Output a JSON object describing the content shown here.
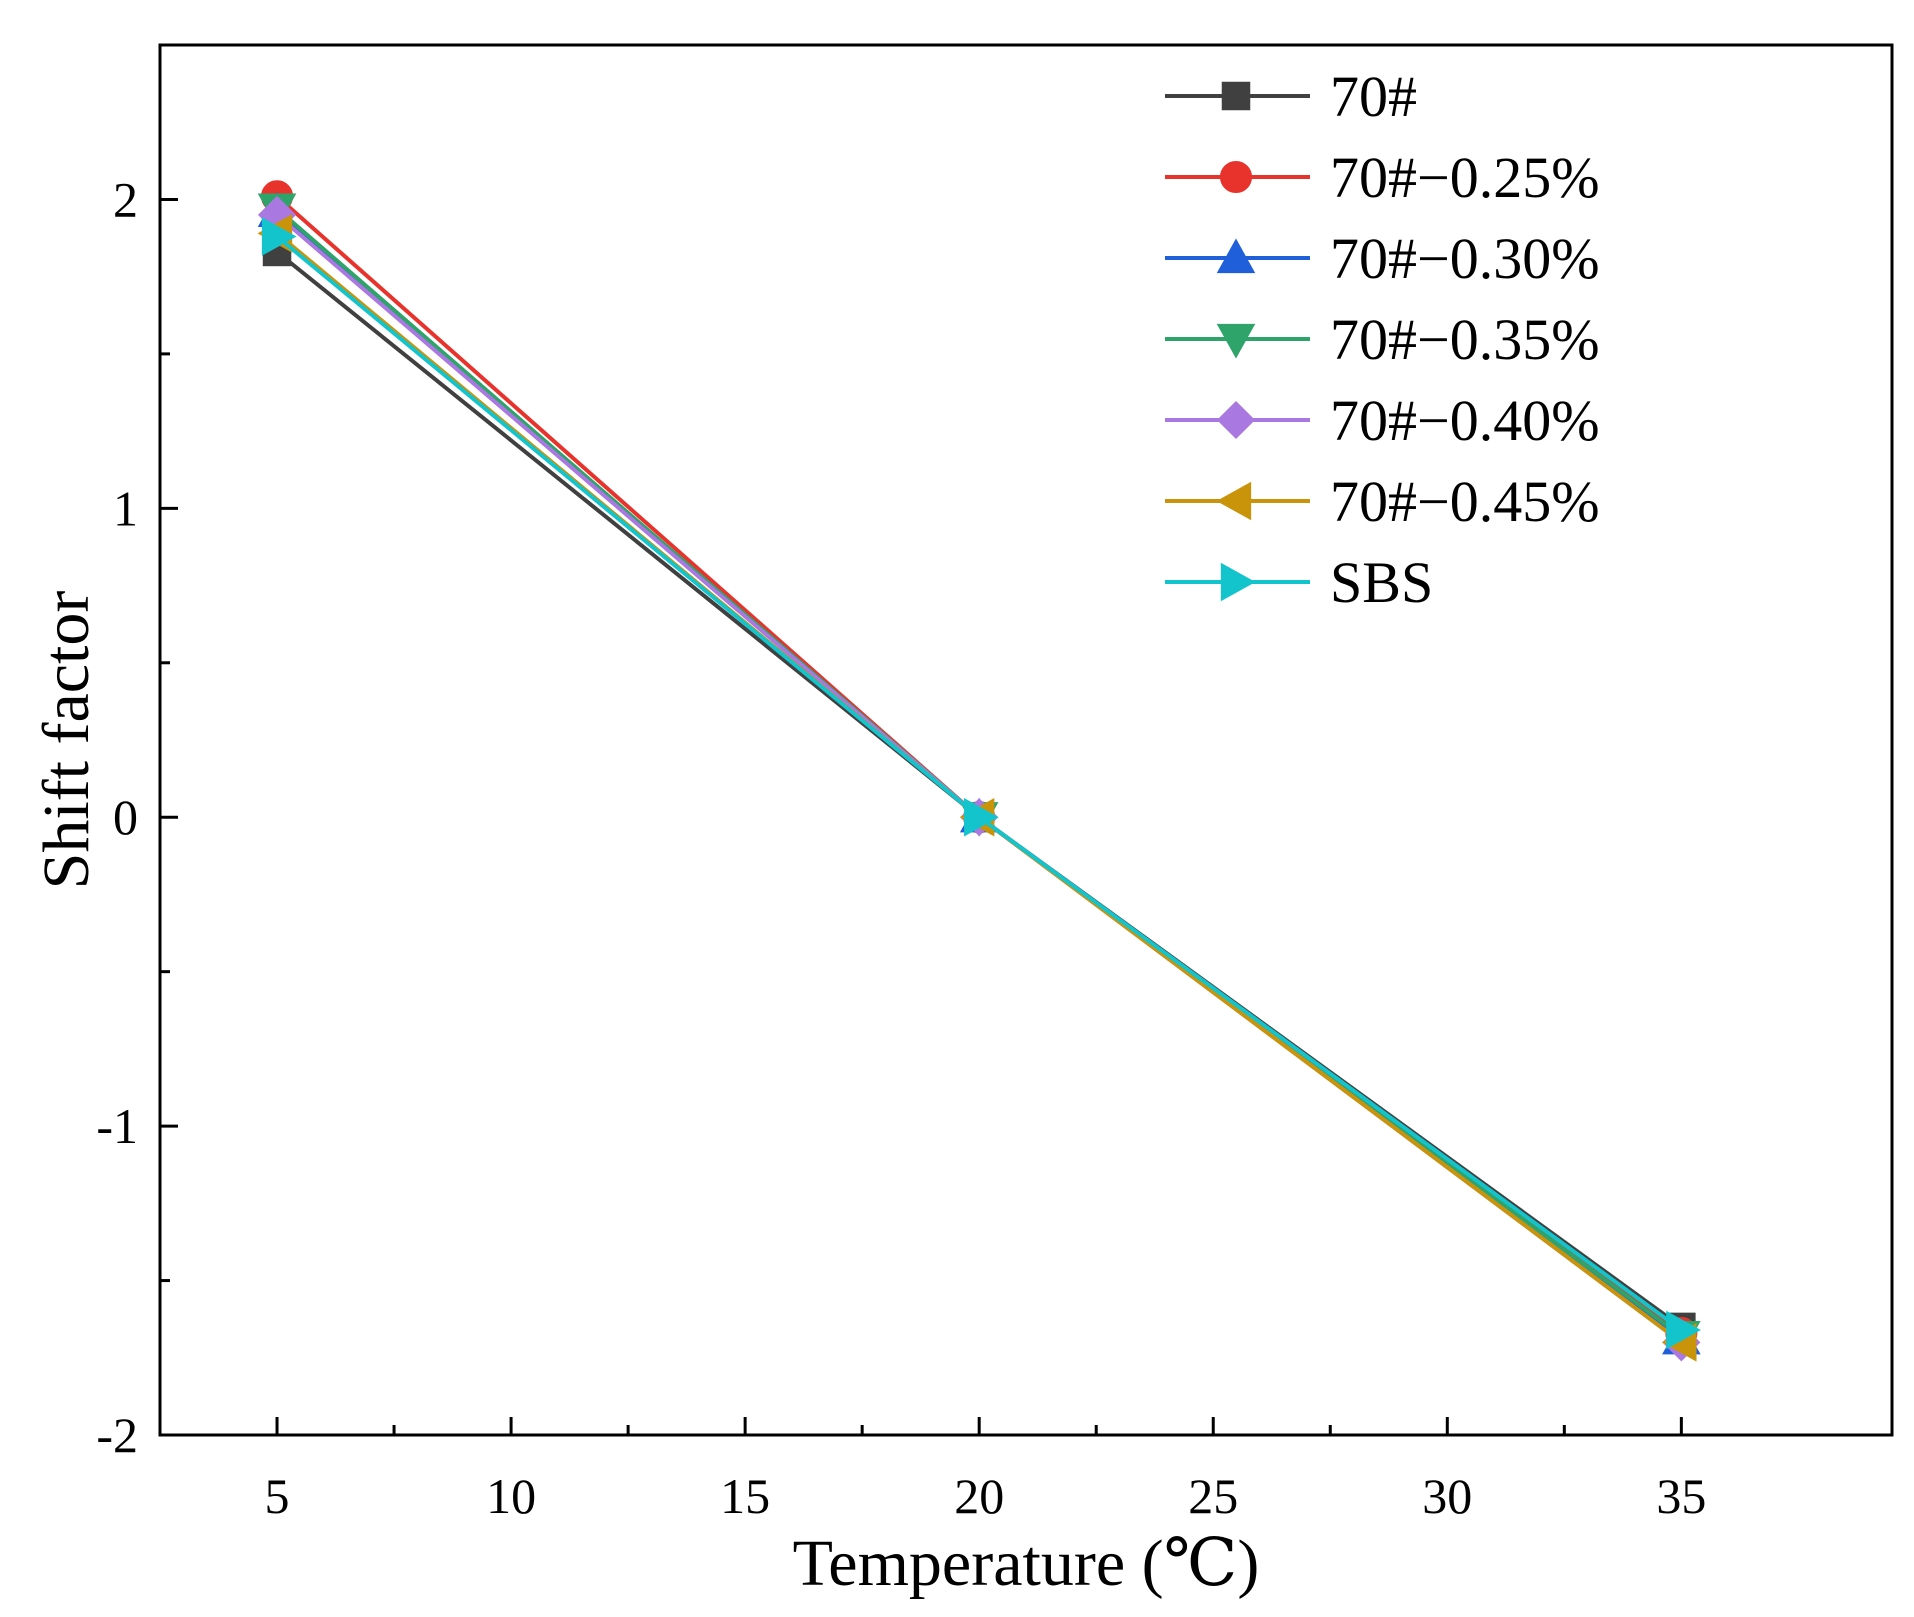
{
  "chart_data": {
    "type": "line",
    "title": "",
    "xlabel": "Temperature (℃)",
    "ylabel": "Shift factor",
    "x": [
      5,
      20,
      35
    ],
    "xlim": [
      2.5,
      39.5
    ],
    "ylim": [
      -2,
      2.5
    ],
    "xticks": [
      5,
      10,
      15,
      20,
      25,
      30,
      35
    ],
    "yticks": [
      -2,
      -1,
      0,
      1,
      2
    ],
    "xtick_labels": [
      "5",
      "10",
      "15",
      "20",
      "25",
      "30",
      "35"
    ],
    "ytick_labels": [
      "-2",
      "-1",
      "0",
      "1",
      "2"
    ],
    "legend_position": "top-right",
    "grid": false,
    "series": [
      {
        "name": "70#",
        "values": [
          1.83,
          0,
          -1.65
        ],
        "color": "#404040",
        "marker": "square"
      },
      {
        "name": "70#−0.25%",
        "values": [
          2.01,
          0,
          -1.67
        ],
        "color": "#e8332c",
        "marker": "circle"
      },
      {
        "name": "70#−0.30%",
        "values": [
          1.96,
          0,
          -1.69
        ],
        "color": "#1f5fd9",
        "marker": "triangle-up"
      },
      {
        "name": "70#−0.35%",
        "values": [
          1.97,
          0,
          -1.68
        ],
        "color": "#2ea36a",
        "marker": "triangle-down"
      },
      {
        "name": "70#−0.40%",
        "values": [
          1.95,
          0,
          -1.7
        ],
        "color": "#a978e0",
        "marker": "diamond"
      },
      {
        "name": "70#−0.45%",
        "values": [
          1.89,
          0,
          -1.7
        ],
        "color": "#c9930a",
        "marker": "triangle-left"
      },
      {
        "name": "SBS",
        "values": [
          1.88,
          0,
          -1.66
        ],
        "color": "#14c4cc",
        "marker": "triangle-right"
      }
    ]
  }
}
